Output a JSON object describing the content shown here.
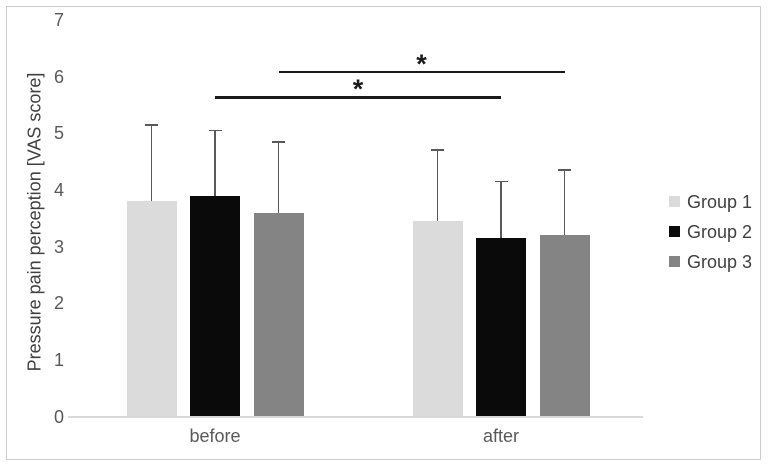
{
  "figure": {
    "background": "#ffffff",
    "border_color": "#cdcdcd",
    "axis_line_color": "#d9d9d9",
    "error_bar_color": "#595959",
    "significance_color": "#1a1a1a",
    "tick_label_color": "#595959",
    "axis_title_color": "#404040"
  },
  "chart_data": {
    "type": "bar",
    "title": "",
    "xlabel": "",
    "ylabel": "Pressure pain perception [VAS score]",
    "categories": [
      "before",
      "after"
    ],
    "series": [
      {
        "name": "Group 1",
        "color": "#dbdbdb",
        "values": [
          3.8,
          3.45
        ],
        "error_up": [
          1.35,
          1.25
        ]
      },
      {
        "name": "Group 2",
        "color": "#0a0a0a",
        "values": [
          3.9,
          3.15
        ],
        "error_up": [
          1.15,
          1.0
        ]
      },
      {
        "name": "Group 3",
        "color": "#848484",
        "values": [
          3.6,
          3.2
        ],
        "error_up": [
          1.25,
          1.15
        ]
      }
    ],
    "ylim": [
      0,
      7
    ],
    "yticks": [
      0,
      1,
      2,
      3,
      4,
      5,
      6,
      7
    ],
    "grid": false,
    "legend_position": "right",
    "error_bars": "plus-direction-only",
    "significance": [
      {
        "label": "*",
        "series": "Group 2",
        "from_category": "before",
        "to_category": "after",
        "y": 5.65
      },
      {
        "label": "*",
        "series": "Group 3",
        "from_category": "before",
        "to_category": "after",
        "y": 6.1
      }
    ]
  }
}
